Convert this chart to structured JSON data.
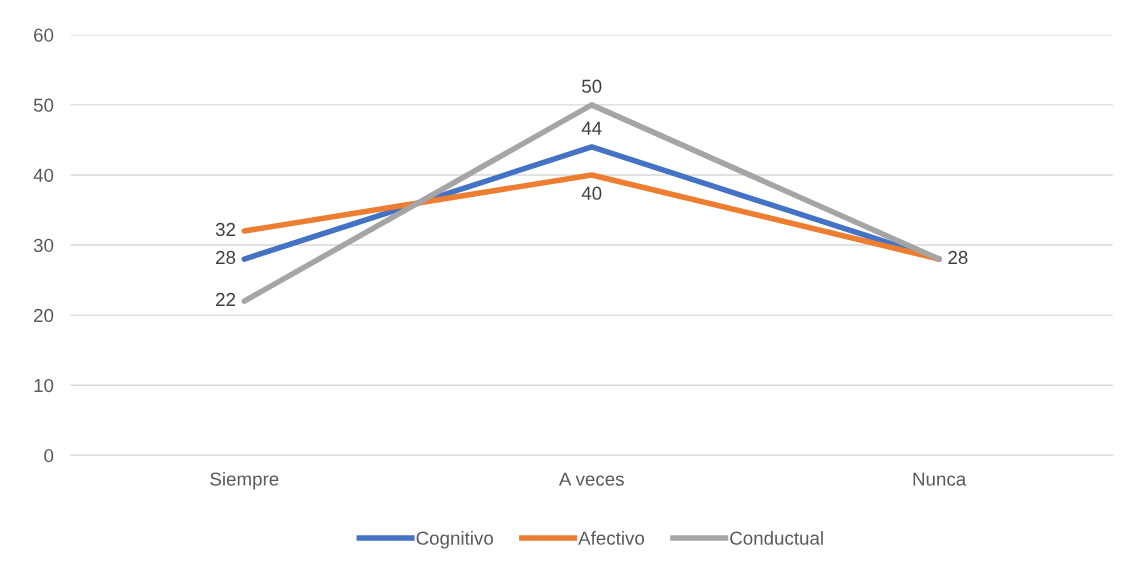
{
  "chart_data": {
    "type": "line",
    "categories": [
      "Siempre",
      "A veces",
      "Nunca"
    ],
    "series": [
      {
        "name": "Cognitivo",
        "color": "#4472c4",
        "values": [
          28,
          44,
          28
        ],
        "value_labels": [
          "28",
          "44",
          null
        ]
      },
      {
        "name": "Afectivo",
        "color": "#ed7d31",
        "values": [
          32,
          40,
          28
        ],
        "value_labels": [
          "32",
          "40",
          null
        ]
      },
      {
        "name": "Conductual",
        "color": "#a5a5a5",
        "values": [
          22,
          50,
          28
        ],
        "value_labels": [
          "22",
          "50",
          "28"
        ]
      }
    ],
    "ylim": [
      0,
      60
    ],
    "yticks": [
      0,
      10,
      20,
      30,
      40,
      50,
      60
    ],
    "grid": "y",
    "legend": "bottom",
    "marker": "none",
    "line_style": "solid"
  }
}
